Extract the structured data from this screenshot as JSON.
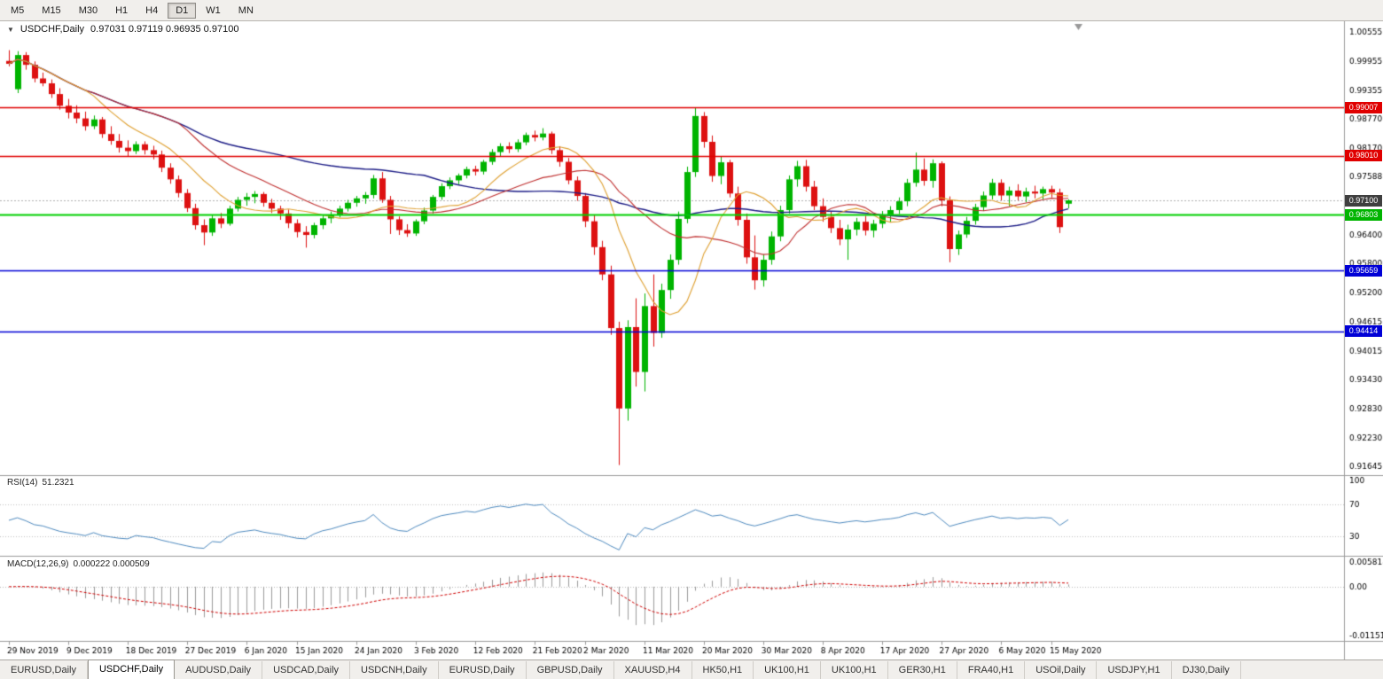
{
  "toolbar": {
    "timeframes": [
      "M5",
      "M15",
      "M30",
      "H1",
      "H4",
      "D1",
      "W1",
      "MN"
    ],
    "active": "D1"
  },
  "chart": {
    "menu_icon": "▼",
    "title_symbol": "USDCHF,Daily",
    "ohlc": "0.97031 0.97119 0.96935 0.97100"
  },
  "indicators": {
    "rsi": {
      "label": "RSI(14)",
      "value": "51.2321",
      "axis": [
        {
          "v": 100,
          "t": "100"
        },
        {
          "v": 70,
          "t": "70"
        },
        {
          "v": 30,
          "t": "30"
        }
      ]
    },
    "macd": {
      "label": "MACD(12,26,9)",
      "values": "0.000222 0.000509",
      "axis": [
        {
          "v": 0.005818,
          "t": "0.005818"
        },
        {
          "v": 0,
          "t": "0.00"
        },
        {
          "v": -0.011511,
          "t": "-0.011511"
        }
      ]
    }
  },
  "price_axis": {
    "ticks": [
      "1.00555",
      "0.99955",
      "0.99355",
      "0.98770",
      "0.98170",
      "0.97588",
      "0.96400",
      "0.95800",
      "0.95200",
      "0.94615",
      "0.94015",
      "0.93430",
      "0.92830",
      "0.92230",
      "0.91645"
    ],
    "tags": [
      {
        "text": "0.99007",
        "price": 0.99007,
        "color": "#e00000"
      },
      {
        "text": "0.98010",
        "price": 0.9801,
        "color": "#e00000"
      },
      {
        "text": "0.97100",
        "price": 0.971,
        "color": "#3f3f3f"
      },
      {
        "text": "0.96803",
        "price": 0.96803,
        "color": "#00b400"
      },
      {
        "text": "0.95659",
        "price": 0.95659,
        "color": "#0000d6"
      },
      {
        "text": "0.94414",
        "price": 0.94414,
        "color": "#0000d6"
      }
    ]
  },
  "colors": {
    "up": "#00b400",
    "down": "#dd1111",
    "ma_fast": "#dfa030",
    "ma_mid": "#c03030",
    "ma_slow": "#1c1c86",
    "rsi": "#4e8abf",
    "rsi_levels": "#c0c0c0",
    "macd_hist": "#9a9a9a",
    "macd_signal": "#d00000",
    "separator": "#9a9a9a",
    "current_line": "#b0b0b0"
  },
  "chart_data": {
    "type": "candlestick",
    "symbol": "USDCHF",
    "timeframe": "Daily",
    "ylim": [
      0.91645,
      1.00555
    ],
    "current_price": 0.971,
    "ma_periods": {
      "fast": 10,
      "mid": 21,
      "slow": 50
    },
    "rsi_period": 14,
    "macd": {
      "fast": 12,
      "slow": 26,
      "signal": 9,
      "ylim": [
        -0.011511,
        0.005818
      ]
    },
    "levels": [
      {
        "price": 0.99007,
        "color": "#e00000",
        "width": 1.3
      },
      {
        "price": 0.9801,
        "color": "#e00000",
        "width": 1.3
      },
      {
        "price": 0.96803,
        "color": "#00d000",
        "width": 1.8
      },
      {
        "price": 0.95659,
        "color": "#0000d6",
        "width": 1.5
      },
      {
        "price": 0.94414,
        "color": "#0000d6",
        "width": 1.5
      }
    ],
    "x_labels": [
      "29 Nov 2019",
      "9 Dec 2019",
      "18 Dec 2019",
      "27 Dec 2019",
      "6 Jan 2020",
      "15 Jan 2020",
      "24 Jan 2020",
      "3 Feb 2020",
      "12 Feb 2020",
      "21 Feb 2020",
      "2 Mar 2020",
      "11 Mar 2020",
      "20 Mar 2020",
      "30 Mar 2020",
      "8 Apr 2020",
      "17 Apr 2020",
      "27 Apr 2020",
      "6 May 2020",
      "15 May 2020"
    ],
    "label_indices": [
      0,
      7,
      14,
      21,
      28,
      34,
      41,
      48,
      55,
      62,
      68,
      75,
      82,
      89,
      96,
      103,
      110,
      117,
      123
    ],
    "candles": [
      [
        0.9996,
        1.0018,
        0.9985,
        0.999
      ],
      [
        0.9938,
        1.0016,
        0.993,
        1.0008
      ],
      [
        1.0008,
        1.0014,
        0.9978,
        0.9988
      ],
      [
        0.9988,
        0.9995,
        0.9952,
        0.996
      ],
      [
        0.996,
        0.9972,
        0.9944,
        0.995
      ],
      [
        0.995,
        0.9958,
        0.992,
        0.9928
      ],
      [
        0.9928,
        0.994,
        0.9896,
        0.9904
      ],
      [
        0.9904,
        0.9918,
        0.9878,
        0.989
      ],
      [
        0.989,
        0.9905,
        0.9868,
        0.9878
      ],
      [
        0.9878,
        0.9892,
        0.9853,
        0.9862
      ],
      [
        0.9862,
        0.9884,
        0.9856,
        0.9876
      ],
      [
        0.9876,
        0.9881,
        0.9838,
        0.9846
      ],
      [
        0.9846,
        0.9862,
        0.9824,
        0.9832
      ],
      [
        0.9832,
        0.9846,
        0.9808,
        0.9818
      ],
      [
        0.9818,
        0.9833,
        0.98,
        0.9811
      ],
      [
        0.9811,
        0.9831,
        0.9805,
        0.9825
      ],
      [
        0.9825,
        0.9831,
        0.9804,
        0.9813
      ],
      [
        0.9813,
        0.9822,
        0.9794,
        0.9804
      ],
      [
        0.9804,
        0.9812,
        0.9768,
        0.9777
      ],
      [
        0.9777,
        0.9786,
        0.9744,
        0.9753
      ],
      [
        0.9753,
        0.9761,
        0.9716,
        0.9725
      ],
      [
        0.9725,
        0.9733,
        0.9686,
        0.9694
      ],
      [
        0.9694,
        0.9703,
        0.965,
        0.9659
      ],
      [
        0.9659,
        0.9671,
        0.9618,
        0.9644
      ],
      [
        0.9644,
        0.968,
        0.9637,
        0.9673
      ],
      [
        0.9673,
        0.9684,
        0.9653,
        0.9662
      ],
      [
        0.9662,
        0.9699,
        0.9658,
        0.9693
      ],
      [
        0.9693,
        0.9717,
        0.9687,
        0.9711
      ],
      [
        0.9711,
        0.9725,
        0.9699,
        0.9717
      ],
      [
        0.9717,
        0.9729,
        0.9704,
        0.9723
      ],
      [
        0.9723,
        0.9727,
        0.9697,
        0.9705
      ],
      [
        0.9705,
        0.9713,
        0.9684,
        0.9693
      ],
      [
        0.9693,
        0.9699,
        0.967,
        0.9683
      ],
      [
        0.9683,
        0.9691,
        0.9653,
        0.9663
      ],
      [
        0.9663,
        0.9671,
        0.9634,
        0.9645
      ],
      [
        0.9645,
        0.9657,
        0.9613,
        0.9639
      ],
      [
        0.9639,
        0.9664,
        0.9632,
        0.9659
      ],
      [
        0.9659,
        0.9679,
        0.9651,
        0.9673
      ],
      [
        0.9673,
        0.9687,
        0.9663,
        0.9681
      ],
      [
        0.9681,
        0.9699,
        0.9675,
        0.9693
      ],
      [
        0.9693,
        0.9711,
        0.9687,
        0.9705
      ],
      [
        0.9705,
        0.9719,
        0.9697,
        0.9714
      ],
      [
        0.9714,
        0.9727,
        0.9703,
        0.9721
      ],
      [
        0.9721,
        0.9762,
        0.9714,
        0.9755
      ],
      [
        0.9755,
        0.9768,
        0.9705,
        0.9711
      ],
      [
        0.9711,
        0.9719,
        0.9641,
        0.9671
      ],
      [
        0.9671,
        0.9677,
        0.9639,
        0.9649
      ],
      [
        0.9649,
        0.9661,
        0.9635,
        0.9642
      ],
      [
        0.9642,
        0.9671,
        0.9637,
        0.9667
      ],
      [
        0.9667,
        0.9695,
        0.9661,
        0.9689
      ],
      [
        0.9689,
        0.9721,
        0.9683,
        0.9717
      ],
      [
        0.9717,
        0.9745,
        0.9711,
        0.9739
      ],
      [
        0.9739,
        0.9757,
        0.9733,
        0.9751
      ],
      [
        0.9751,
        0.9765,
        0.9743,
        0.9761
      ],
      [
        0.9761,
        0.9779,
        0.9755,
        0.9774
      ],
      [
        0.9774,
        0.9781,
        0.9761,
        0.9769
      ],
      [
        0.9769,
        0.9793,
        0.9763,
        0.9789
      ],
      [
        0.9789,
        0.9815,
        0.9783,
        0.9809
      ],
      [
        0.9809,
        0.9827,
        0.9801,
        0.9821
      ],
      [
        0.9821,
        0.9829,
        0.9807,
        0.9815
      ],
      [
        0.9815,
        0.9835,
        0.9809,
        0.9829
      ],
      [
        0.9829,
        0.9849,
        0.9823,
        0.9844
      ],
      [
        0.9844,
        0.9853,
        0.9831,
        0.9839
      ],
      [
        0.9839,
        0.9858,
        0.9833,
        0.9847
      ],
      [
        0.9847,
        0.9851,
        0.9805,
        0.9813
      ],
      [
        0.9813,
        0.9821,
        0.9779,
        0.9789
      ],
      [
        0.9789,
        0.9797,
        0.9743,
        0.9751
      ],
      [
        0.9751,
        0.9759,
        0.9709,
        0.9719
      ],
      [
        0.9719,
        0.9725,
        0.9655,
        0.9667
      ],
      [
        0.9667,
        0.9679,
        0.9598,
        0.9614
      ],
      [
        0.9614,
        0.9627,
        0.9546,
        0.9558
      ],
      [
        0.9558,
        0.9576,
        0.9434,
        0.9448
      ],
      [
        0.9448,
        0.9461,
        0.9167,
        0.9283
      ],
      [
        0.9283,
        0.9464,
        0.9258,
        0.945
      ],
      [
        0.945,
        0.9509,
        0.9328,
        0.9358
      ],
      [
        0.9358,
        0.9519,
        0.9318,
        0.9493
      ],
      [
        0.9493,
        0.9558,
        0.941,
        0.9438
      ],
      [
        0.9438,
        0.9539,
        0.9428,
        0.9526
      ],
      [
        0.9526,
        0.9599,
        0.9508,
        0.9588
      ],
      [
        0.9588,
        0.9687,
        0.9578,
        0.9672
      ],
      [
        0.9672,
        0.9779,
        0.9663,
        0.9768
      ],
      [
        0.9768,
        0.9899,
        0.9758,
        0.9883
      ],
      [
        0.9883,
        0.9891,
        0.9818,
        0.983
      ],
      [
        0.983,
        0.9843,
        0.9748,
        0.976
      ],
      [
        0.976,
        0.9799,
        0.9743,
        0.9788
      ],
      [
        0.9788,
        0.9793,
        0.9716,
        0.9724
      ],
      [
        0.9724,
        0.9738,
        0.9658,
        0.967
      ],
      [
        0.967,
        0.9683,
        0.958,
        0.9593
      ],
      [
        0.9593,
        0.9638,
        0.9527,
        0.9546
      ],
      [
        0.9546,
        0.9599,
        0.9533,
        0.9588
      ],
      [
        0.9588,
        0.9646,
        0.9578,
        0.9636
      ],
      [
        0.9636,
        0.9699,
        0.9626,
        0.969
      ],
      [
        0.969,
        0.9761,
        0.9683,
        0.9753
      ],
      [
        0.9753,
        0.9791,
        0.9738,
        0.978
      ],
      [
        0.978,
        0.9793,
        0.9728,
        0.9738
      ],
      [
        0.9738,
        0.975,
        0.969,
        0.9698
      ],
      [
        0.9698,
        0.9714,
        0.9666,
        0.9676
      ],
      [
        0.9676,
        0.9688,
        0.9643,
        0.9653
      ],
      [
        0.9653,
        0.967,
        0.9618,
        0.963
      ],
      [
        0.963,
        0.966,
        0.9588,
        0.965
      ],
      [
        0.965,
        0.9674,
        0.9638,
        0.9666
      ],
      [
        0.9666,
        0.9678,
        0.9638,
        0.9648
      ],
      [
        0.9648,
        0.967,
        0.9634,
        0.9662
      ],
      [
        0.9662,
        0.9688,
        0.9653,
        0.968
      ],
      [
        0.968,
        0.9698,
        0.9666,
        0.969
      ],
      [
        0.969,
        0.9716,
        0.9682,
        0.9708
      ],
      [
        0.9708,
        0.9754,
        0.9698,
        0.9746
      ],
      [
        0.9746,
        0.9808,
        0.9738,
        0.9773
      ],
      [
        0.9773,
        0.9796,
        0.974,
        0.975
      ],
      [
        0.975,
        0.9794,
        0.9736,
        0.9786
      ],
      [
        0.9786,
        0.979,
        0.9698,
        0.971
      ],
      [
        0.971,
        0.9718,
        0.9583,
        0.961
      ],
      [
        0.961,
        0.9648,
        0.9598,
        0.964
      ],
      [
        0.964,
        0.9676,
        0.9633,
        0.9668
      ],
      [
        0.9668,
        0.9703,
        0.966,
        0.9696
      ],
      [
        0.9696,
        0.9728,
        0.9688,
        0.972
      ],
      [
        0.972,
        0.9754,
        0.9712,
        0.9746
      ],
      [
        0.9746,
        0.9753,
        0.971,
        0.972
      ],
      [
        0.972,
        0.9738,
        0.9698,
        0.973
      ],
      [
        0.973,
        0.9743,
        0.971,
        0.9718
      ],
      [
        0.9718,
        0.9736,
        0.9706,
        0.9728
      ],
      [
        0.9728,
        0.974,
        0.9714,
        0.9724
      ],
      [
        0.9724,
        0.9738,
        0.9712,
        0.9733
      ],
      [
        0.9733,
        0.974,
        0.9716,
        0.9726
      ],
      [
        0.9726,
        0.9734,
        0.9643,
        0.9655
      ],
      [
        0.97031,
        0.97119,
        0.96935,
        0.971
      ]
    ]
  },
  "tabbar": {
    "active_index": 1,
    "tabs": [
      "EURUSD,Daily",
      "USDCHF,Daily",
      "AUDUSD,Daily",
      "USDCAD,Daily",
      "USDCNH,Daily",
      "EURUSD,Daily",
      "GBPUSD,Daily",
      "XAUUSD,H4",
      "HK50,H1",
      "UK100,H1",
      "UK100,H1",
      "GER30,H1",
      "FRA40,H1",
      "USOil,Daily",
      "USDJPY,H1",
      "DJ30,Daily"
    ]
  }
}
